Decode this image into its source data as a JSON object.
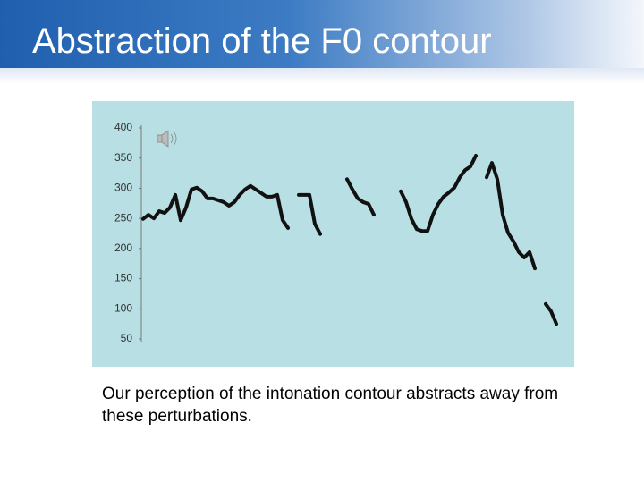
{
  "title": "Abstraction of the F0 contour",
  "chart_data": {
    "type": "line",
    "values": [
      249,
      256,
      250,
      262,
      259,
      268,
      289,
      247,
      268,
      298,
      301,
      295,
      283,
      283,
      280,
      277,
      271,
      277,
      289,
      298,
      304,
      298,
      292,
      286,
      286,
      289,
      247,
      234,
      null,
      289,
      289,
      289,
      241,
      224,
      null,
      null,
      null,
      null,
      315,
      298,
      283,
      277,
      274,
      256,
      null,
      null,
      null,
      null,
      295,
      277,
      249,
      232,
      229,
      229,
      256,
      274,
      286,
      293,
      301,
      318,
      330,
      336,
      354,
      null,
      318,
      342,
      315,
      256,
      226,
      212,
      194,
      185,
      194,
      167,
      null,
      108,
      96,
      75
    ],
    "color": "#111111",
    "ylim": [
      50,
      400
    ],
    "yticks": [
      50,
      100,
      150,
      200,
      250,
      300,
      350,
      400
    ]
  },
  "caption": "Our perception of the intonation contour abstracts away from these perturbations."
}
